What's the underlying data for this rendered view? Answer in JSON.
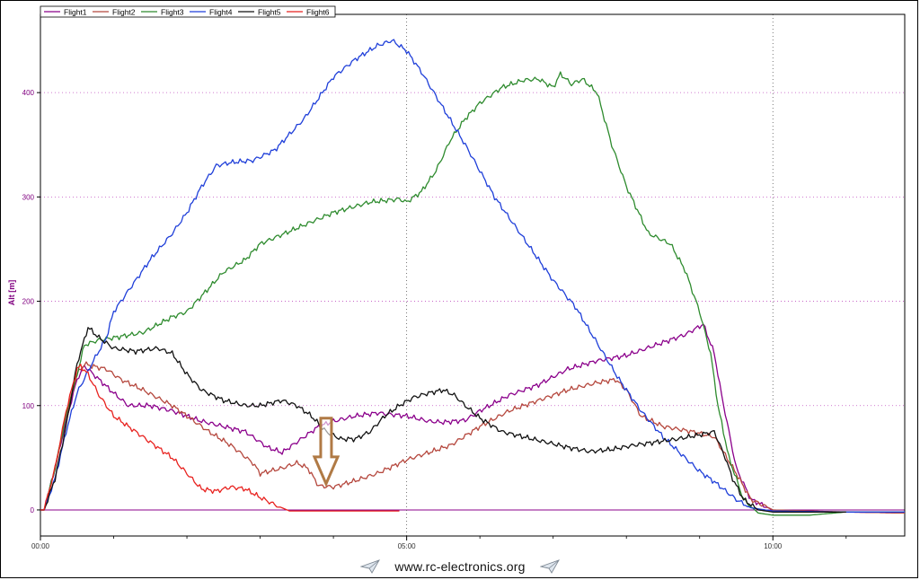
{
  "chart_data": {
    "type": "line",
    "ylabel": "Alt [m]",
    "xlabel": "",
    "xlim": [
      0,
      11.8
    ],
    "ylim": [
      -25,
      475
    ],
    "x_ticks": [
      0,
      5,
      10
    ],
    "x_tick_labels": [
      "00:00",
      "05:00",
      "10:00"
    ],
    "y_ticks": [
      0,
      100,
      200,
      300,
      400
    ],
    "y_tick_labels": [
      "0",
      "100",
      "200",
      "300",
      "400"
    ],
    "grid": true,
    "legend": "top-left",
    "series": [
      {
        "name": "Flight1",
        "color": "#8b008b",
        "x": [
          0,
          0.05,
          0.2,
          0.35,
          0.5,
          0.6,
          0.8,
          1.0,
          1.2,
          1.5,
          1.8,
          2.0,
          2.2,
          2.5,
          2.8,
          3.1,
          3.3,
          3.5,
          3.8,
          4.0,
          4.3,
          4.6,
          5.0,
          5.3,
          5.5,
          5.8,
          6.0,
          6.4,
          6.8,
          7.2,
          7.6,
          8.0,
          8.4,
          8.8,
          9.05,
          9.2,
          9.3,
          9.5,
          9.7,
          10.0,
          10.5,
          11.0,
          11.8
        ],
        "y": [
          0,
          0,
          40,
          85,
          125,
          138,
          125,
          112,
          100,
          100,
          95,
          90,
          85,
          80,
          75,
          60,
          55,
          65,
          80,
          85,
          90,
          93,
          90,
          85,
          84,
          86,
          95,
          110,
          120,
          135,
          143,
          148,
          158,
          168,
          178,
          150,
          110,
          40,
          10,
          0,
          -2,
          -2,
          -3
        ]
      },
      {
        "name": "Flight2",
        "color": "#b5473d",
        "x": [
          0,
          0.05,
          0.2,
          0.35,
          0.5,
          0.6,
          0.7,
          0.9,
          1.1,
          1.4,
          1.8,
          2.0,
          2.3,
          2.6,
          2.9,
          3.0,
          3.3,
          3.5,
          3.65,
          3.8,
          4.0,
          4.3,
          4.6,
          5.0,
          5.3,
          5.6,
          6.0,
          6.4,
          6.8,
          7.2,
          7.6,
          7.85,
          8.0,
          8.2,
          8.5,
          8.9,
          9.2,
          9.5,
          9.7,
          10.0,
          11.0,
          11.8
        ],
        "y": [
          0,
          0,
          40,
          90,
          130,
          140,
          138,
          135,
          125,
          115,
          100,
          90,
          75,
          62,
          45,
          35,
          40,
          45,
          40,
          23,
          22,
          28,
          35,
          48,
          55,
          62,
          80,
          95,
          105,
          115,
          122,
          125,
          115,
          90,
          80,
          75,
          70,
          35,
          10,
          0,
          -2,
          -3
        ]
      },
      {
        "name": "Flight3",
        "color": "#2e8b2e",
        "x": [
          0,
          0.05,
          0.2,
          0.35,
          0.5,
          0.6,
          0.8,
          1.0,
          1.4,
          1.8,
          2.0,
          2.2,
          2.5,
          2.8,
          3.0,
          3.5,
          4.0,
          4.5,
          4.9,
          5.0,
          5.2,
          5.4,
          5.6,
          5.8,
          6.0,
          6.3,
          6.6,
          6.8,
          7.0,
          7.1,
          7.25,
          7.4,
          7.6,
          7.8,
          8.0,
          8.3,
          8.6,
          8.8,
          9.0,
          9.15,
          9.25,
          9.4,
          9.6,
          9.8,
          10.0,
          10.5,
          11.0,
          11.8
        ],
        "y": [
          0,
          0,
          40,
          90,
          130,
          158,
          163,
          165,
          170,
          185,
          190,
          205,
          228,
          240,
          255,
          270,
          285,
          295,
          298,
          295,
          305,
          325,
          355,
          375,
          390,
          405,
          412,
          413,
          405,
          418,
          408,
          413,
          400,
          350,
          310,
          265,
          255,
          230,
          190,
          150,
          100,
          50,
          10,
          -3,
          -5,
          -5,
          -2,
          -2
        ]
      },
      {
        "name": "Flight4",
        "color": "#1f3fd9",
        "x": [
          0,
          0.05,
          0.2,
          0.35,
          0.5,
          0.7,
          0.9,
          1.0,
          1.2,
          1.5,
          1.8,
          2.0,
          2.2,
          2.4,
          2.6,
          2.9,
          3.2,
          3.4,
          3.6,
          3.8,
          4.0,
          4.3,
          4.6,
          4.8,
          5.0,
          5.2,
          5.5,
          5.8,
          6.0,
          6.2,
          6.5,
          6.8,
          7.0,
          7.3,
          7.6,
          7.9,
          8.2,
          8.5,
          8.8,
          9.0,
          9.2,
          9.5,
          9.7,
          10.0,
          11.0,
          11.8
        ],
        "y": [
          0,
          0,
          30,
          75,
          112,
          140,
          165,
          190,
          210,
          240,
          265,
          285,
          310,
          330,
          333,
          335,
          345,
          360,
          375,
          395,
          415,
          432,
          445,
          450,
          440,
          420,
          385,
          350,
          325,
          300,
          270,
          240,
          220,
          195,
          160,
          125,
          95,
          70,
          50,
          37,
          27,
          10,
          2,
          -1,
          -2,
          -2
        ]
      },
      {
        "name": "Flight5",
        "color": "#111111",
        "x": [
          0,
          0.05,
          0.2,
          0.35,
          0.5,
          0.65,
          0.8,
          1.0,
          1.3,
          1.6,
          1.8,
          2.0,
          2.2,
          2.5,
          2.8,
          3.0,
          3.3,
          3.5,
          3.7,
          3.9,
          4.1,
          4.3,
          4.5,
          4.7,
          4.9,
          5.1,
          5.3,
          5.5,
          5.65,
          5.8,
          6.0,
          6.3,
          6.6,
          6.9,
          7.2,
          7.5,
          7.8,
          8.1,
          8.4,
          8.7,
          9.0,
          9.2,
          9.35,
          9.45,
          9.6,
          9.8,
          10.0,
          10.5,
          11.0
        ],
        "y": [
          0,
          0,
          30,
          80,
          140,
          175,
          165,
          155,
          152,
          155,
          150,
          130,
          115,
          105,
          100,
          100,
          105,
          100,
          90,
          75,
          68,
          68,
          75,
          90,
          100,
          108,
          112,
          115,
          110,
          100,
          88,
          75,
          70,
          65,
          60,
          56,
          58,
          62,
          65,
          68,
          72,
          75,
          50,
          30,
          10,
          0,
          -2,
          -2,
          -2
        ]
      },
      {
        "name": "Flight6",
        "color": "#e8221f",
        "x": [
          0,
          0.05,
          0.2,
          0.35,
          0.5,
          0.55,
          0.65,
          0.8,
          1.0,
          1.2,
          1.5,
          1.8,
          2.0,
          2.2,
          2.4,
          2.6,
          2.8,
          3.0,
          3.2,
          3.4,
          3.6,
          4.0,
          4.5,
          4.9
        ],
        "y": [
          0,
          0,
          40,
          95,
          135,
          138,
          130,
          110,
          90,
          80,
          65,
          50,
          35,
          20,
          18,
          22,
          20,
          12,
          5,
          -1,
          -1,
          -1,
          -1,
          -1
        ]
      }
    ]
  },
  "legend": {
    "items": [
      "Flight1",
      "Flight2",
      "Flight3",
      "Flight4",
      "Flight5",
      "Flight6"
    ]
  },
  "annotation": {
    "label": "down-arrow",
    "color": "#b07a45",
    "at_x": 3.9,
    "from_y": 88,
    "to_y": 25
  },
  "footer": {
    "text": "www.rc-electronics.org",
    "icon": "paper-plane-icon"
  }
}
